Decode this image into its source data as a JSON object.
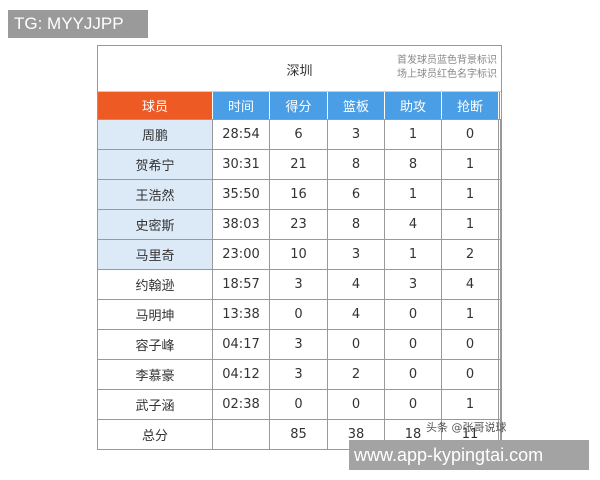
{
  "tag": "TG: MYYJJPP",
  "watermark": "www.app-kypingtai.com",
  "credit": "头条 @张哥说球",
  "table": {
    "team": "深圳",
    "note1": "首发球员蓝色背景标识",
    "note2": "场上球员红色名字标识",
    "headers": [
      "球员",
      "时间",
      "得分",
      "篮板",
      "助攻",
      "抢断"
    ],
    "colors": {
      "player_header": "#ee5a24",
      "stat_header": "#4a9ee6",
      "starter_bg": "#dce9f7"
    },
    "rows": [
      {
        "player": "周鹏",
        "time": "28:54",
        "pts": "6",
        "reb": "3",
        "ast": "1",
        "stl": "0",
        "starter": true
      },
      {
        "player": "贺希宁",
        "time": "30:31",
        "pts": "21",
        "reb": "8",
        "ast": "8",
        "stl": "1",
        "starter": true
      },
      {
        "player": "王浩然",
        "time": "35:50",
        "pts": "16",
        "reb": "6",
        "ast": "1",
        "stl": "1",
        "starter": true
      },
      {
        "player": "史密斯",
        "time": "38:03",
        "pts": "23",
        "reb": "8",
        "ast": "4",
        "stl": "1",
        "starter": true
      },
      {
        "player": "马里奇",
        "time": "23:00",
        "pts": "10",
        "reb": "3",
        "ast": "1",
        "stl": "2",
        "starter": true
      },
      {
        "player": "约翰逊",
        "time": "18:57",
        "pts": "3",
        "reb": "4",
        "ast": "3",
        "stl": "4",
        "starter": false
      },
      {
        "player": "马明坤",
        "time": "13:38",
        "pts": "0",
        "reb": "4",
        "ast": "0",
        "stl": "1",
        "starter": false
      },
      {
        "player": "容子峰",
        "time": "04:17",
        "pts": "3",
        "reb": "0",
        "ast": "0",
        "stl": "0",
        "starter": false
      },
      {
        "player": "李慕豪",
        "time": "04:12",
        "pts": "3",
        "reb": "2",
        "ast": "0",
        "stl": "0",
        "starter": false
      },
      {
        "player": "武子涵",
        "time": "02:38",
        "pts": "0",
        "reb": "0",
        "ast": "0",
        "stl": "1",
        "starter": false
      }
    ],
    "total": {
      "player": "总分",
      "time": "",
      "pts": "85",
      "reb": "38",
      "ast": "18",
      "stl": "11"
    }
  }
}
